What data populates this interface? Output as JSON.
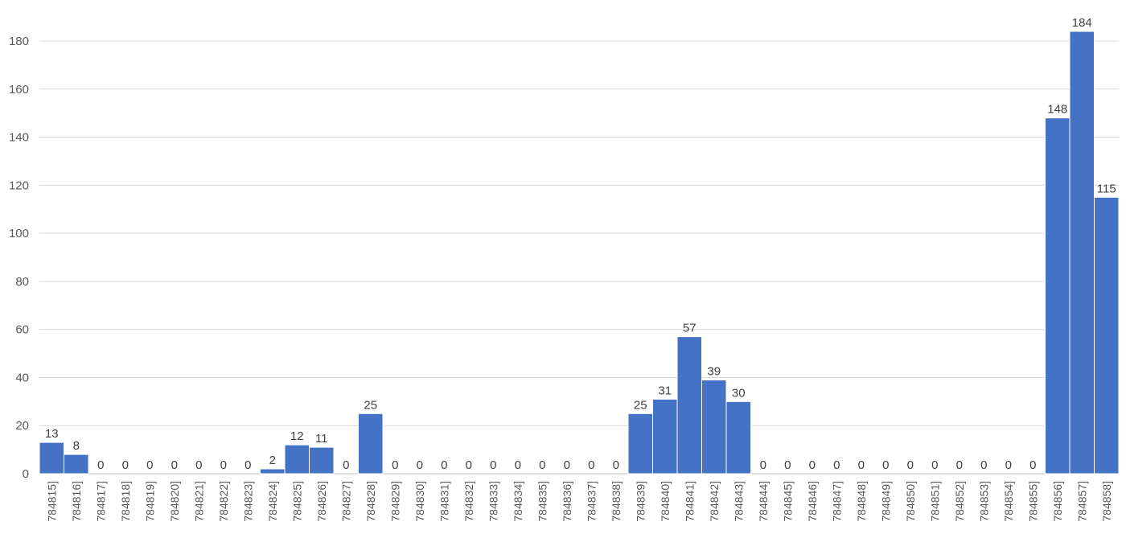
{
  "chart_data": {
    "type": "bar",
    "title": "",
    "xlabel": "",
    "ylabel": "",
    "ylim": [
      0,
      180
    ],
    "yticks": [
      0,
      20,
      40,
      60,
      80,
      100,
      120,
      140,
      160,
      180
    ],
    "grid": true,
    "bar_color": "#4472c4",
    "categories": [
      "784815]",
      "784816]",
      "784817]",
      "784818]",
      "784819]",
      "784820]",
      "784821]",
      "784822]",
      "784823]",
      "784824]",
      "784825]",
      "784826]",
      "784827]",
      "784828]",
      "784829]",
      "784830]",
      "784831]",
      "784832]",
      "784833]",
      "784834]",
      "784835]",
      "784836]",
      "784837]",
      "784838]",
      "784839]",
      "784840]",
      "784841]",
      "784842]",
      "784843]",
      "784844]",
      "784845]",
      "784846]",
      "784847]",
      "784848]",
      "784849]",
      "784850]",
      "784851]",
      "784852]",
      "784853]",
      "784854]",
      "784855]",
      "784856]",
      "784857]",
      "784858]"
    ],
    "values": [
      13,
      8,
      0,
      0,
      0,
      0,
      0,
      0,
      0,
      2,
      12,
      11,
      0,
      25,
      0,
      0,
      0,
      0,
      0,
      0,
      0,
      0,
      0,
      0,
      25,
      31,
      57,
      39,
      30,
      0,
      0,
      0,
      0,
      0,
      0,
      0,
      0,
      0,
      0,
      0,
      0,
      148,
      184,
      115
    ]
  }
}
